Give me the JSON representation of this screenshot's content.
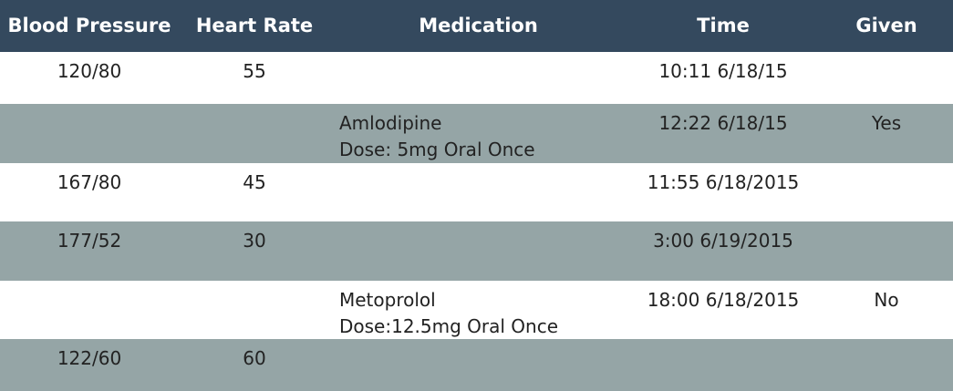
{
  "headers": {
    "blood_pressure": "Blood Pressure",
    "heart_rate": "Heart Rate",
    "medication": "Medication",
    "time": "Time",
    "given": "Given"
  },
  "rows": [
    {
      "bp": "120/80",
      "hr": "55",
      "med_name": "",
      "med_dose": "",
      "time": "10:11 6/18/15",
      "given": ""
    },
    {
      "bp": "",
      "hr": "",
      "med_name": "Amlodipine",
      "med_dose": "Dose: 5mg Oral Once",
      "time": "12:22 6/18/15",
      "given": "Yes"
    },
    {
      "bp": "167/80",
      "hr": "45",
      "med_name": "",
      "med_dose": "",
      "time": "11:55 6/18/2015",
      "given": ""
    },
    {
      "bp": "177/52",
      "hr": "30",
      "med_name": "",
      "med_dose": "",
      "time": "3:00 6/19/2015",
      "given": ""
    },
    {
      "bp": "",
      "hr": "",
      "med_name": "Metoprolol",
      "med_dose": "Dose:12.5mg Oral Once",
      "time": "18:00 6/18/2015",
      "given": "No"
    },
    {
      "bp": "122/60",
      "hr": "60",
      "med_name": "",
      "med_dose": "",
      "time": "",
      "given": ""
    }
  ],
  "colors": {
    "header_bg": "#34495e",
    "row_alt_bg": "#95a5a6",
    "row_bg": "#ffffff"
  }
}
